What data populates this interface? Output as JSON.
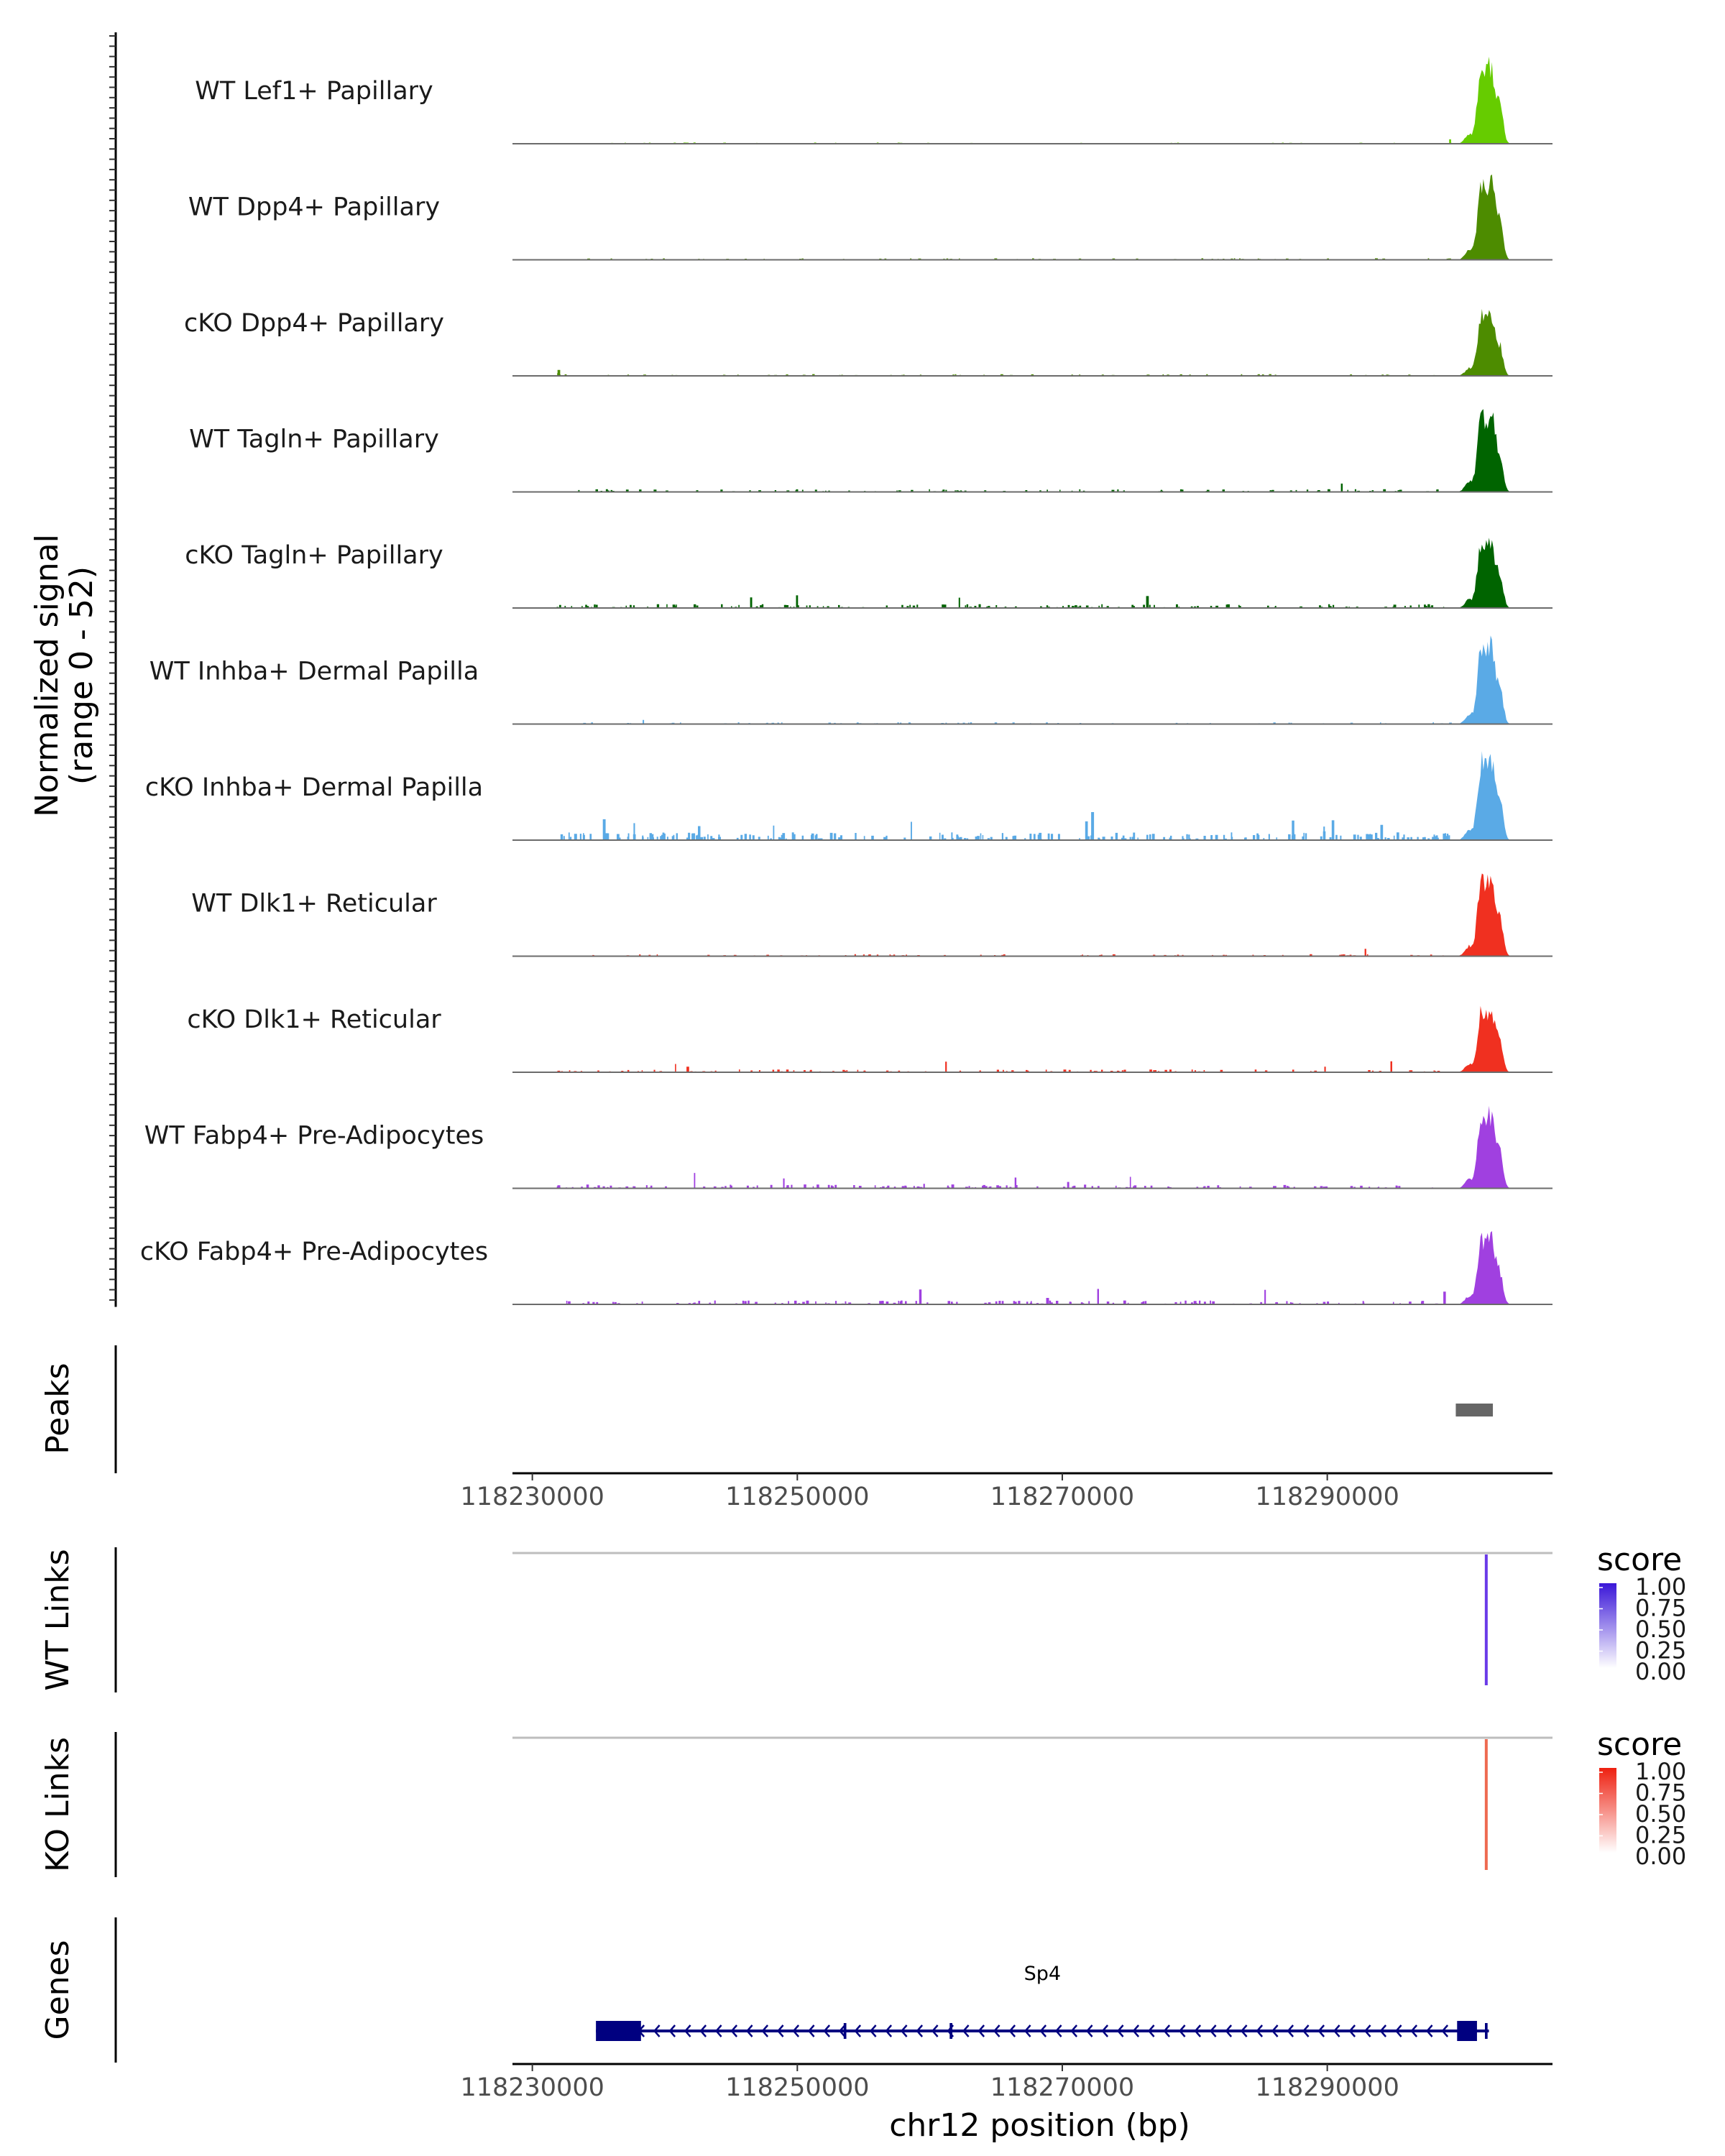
{
  "chart_data": {
    "type": "coverage-tracks",
    "xlabel": "chr12 position (bp)",
    "xlim": [
      118228500,
      118307000
    ],
    "xticks": [
      118230000,
      118250000,
      118270000,
      118290000
    ],
    "xtick_labels": [
      "118230000",
      "118250000",
      "118270000",
      "118290000"
    ],
    "coverage": {
      "ylabel_line1": "Normalized signal",
      "ylabel_line2": "(range 0 - 52)",
      "ylim": [
        0,
        52
      ],
      "peak_center": 118302000,
      "tracks": [
        {
          "name": "WT Lef1+ Papillary",
          "color": "#66cc00",
          "peak_max": 50,
          "noise": 0.6
        },
        {
          "name": "WT Dpp4+ Papillary",
          "color": "#4d8c00",
          "peak_max": 49,
          "noise": 0.8
        },
        {
          "name": "cKO Dpp4+ Papillary",
          "color": "#4d8c00",
          "peak_max": 39,
          "noise": 0.9
        },
        {
          "name": "WT Tagln+ Papillary",
          "color": "#006400",
          "peak_max": 51,
          "noise": 1.4
        },
        {
          "name": "cKO Tagln+ Papillary",
          "color": "#006400",
          "peak_max": 43,
          "noise": 2.0
        },
        {
          "name": "WT Inhba+ Dermal Papilla",
          "color": "#5aaae6",
          "peak_max": 50,
          "noise": 0.9
        },
        {
          "name": "cKO Inhba+ Dermal Papilla",
          "color": "#5aaae6",
          "peak_max": 52,
          "noise": 4.0
        },
        {
          "name": "WT Dlk1+ Reticular",
          "color": "#f03020",
          "peak_max": 52,
          "noise": 1.0
        },
        {
          "name": "cKO Dlk1+ Reticular",
          "color": "#f03020",
          "peak_max": 40,
          "noise": 1.5
        },
        {
          "name": "WT Fabp4+ Pre-Adipocytes",
          "color": "#a040e0",
          "peak_max": 47,
          "noise": 2.0
        },
        {
          "name": "cKO Fabp4+ Pre-Adipocytes",
          "color": "#a040e0",
          "peak_max": 42,
          "noise": 2.0
        }
      ]
    },
    "peaks": {
      "label": "Peaks",
      "regions": [
        {
          "start": 118299700,
          "end": 118302500
        }
      ]
    },
    "links": [
      {
        "label": "WT Links",
        "color": "#6a3ae8",
        "score": 0.75,
        "link_position": 118302000,
        "legend_title": "score",
        "legend_labels": [
          "1.00",
          "0.75",
          "0.50",
          "0.25",
          "0.00"
        ],
        "legend_high_color": "#3a16d8"
      },
      {
        "label": "KO Links",
        "color": "#ee6a50",
        "score": 0.65,
        "link_position": 118302000,
        "legend_title": "score",
        "legend_labels": [
          "1.00",
          "0.75",
          "0.50",
          "0.25",
          "0.00"
        ],
        "legend_high_color": "#ee2010"
      }
    ],
    "genes": {
      "label": "Genes",
      "gene_name": "Sp4",
      "strand": "-",
      "color": "#000080",
      "start": 118234800,
      "end": 118302200,
      "exons": [
        {
          "start": 118234800,
          "end": 118238200
        },
        {
          "start": 118253500,
          "end": 118253700
        },
        {
          "start": 118261500,
          "end": 118261700
        },
        {
          "start": 118299800,
          "end": 118301300
        },
        {
          "start": 118301900,
          "end": 118302100
        }
      ]
    }
  }
}
